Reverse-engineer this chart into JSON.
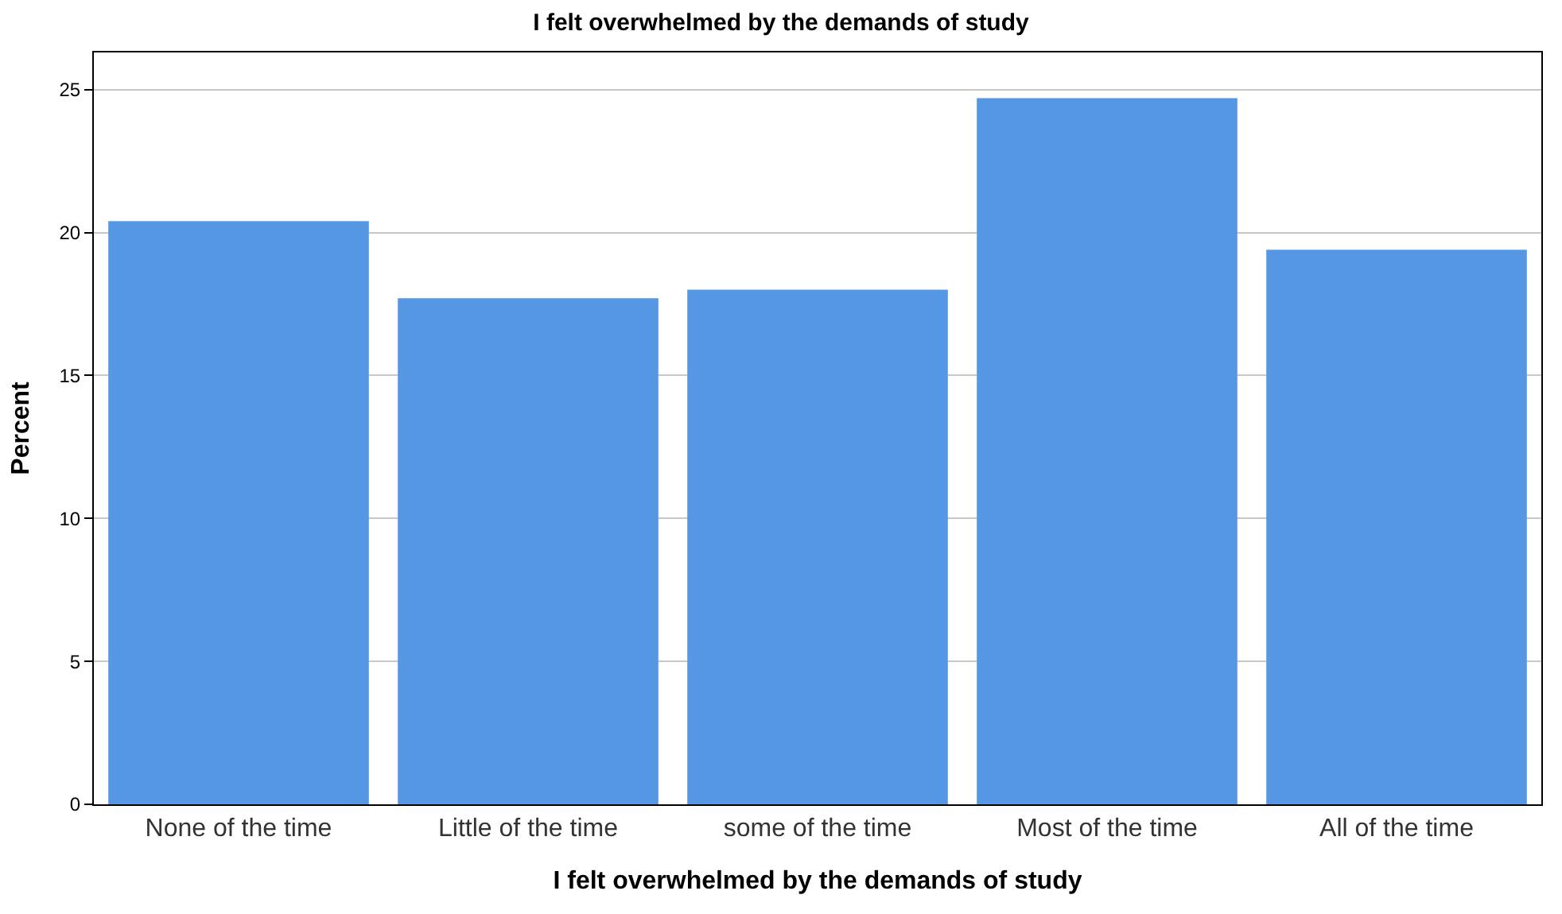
{
  "chart_data": {
    "type": "bar",
    "title": "I felt overwhelmed by the demands of study",
    "xlabel": "I felt overwhelmed by the demands of study",
    "ylabel": "Percent",
    "categories": [
      "None of the time",
      "Little of the time",
      "some of the time",
      "Most of the time",
      "All of the time"
    ],
    "values": [
      20.4,
      17.7,
      18.0,
      24.7,
      19.4
    ],
    "color": "#5597e3",
    "ylim": [
      0,
      26.3
    ],
    "yticks": [
      0,
      5,
      10,
      15,
      20,
      25
    ],
    "grid": "y"
  }
}
